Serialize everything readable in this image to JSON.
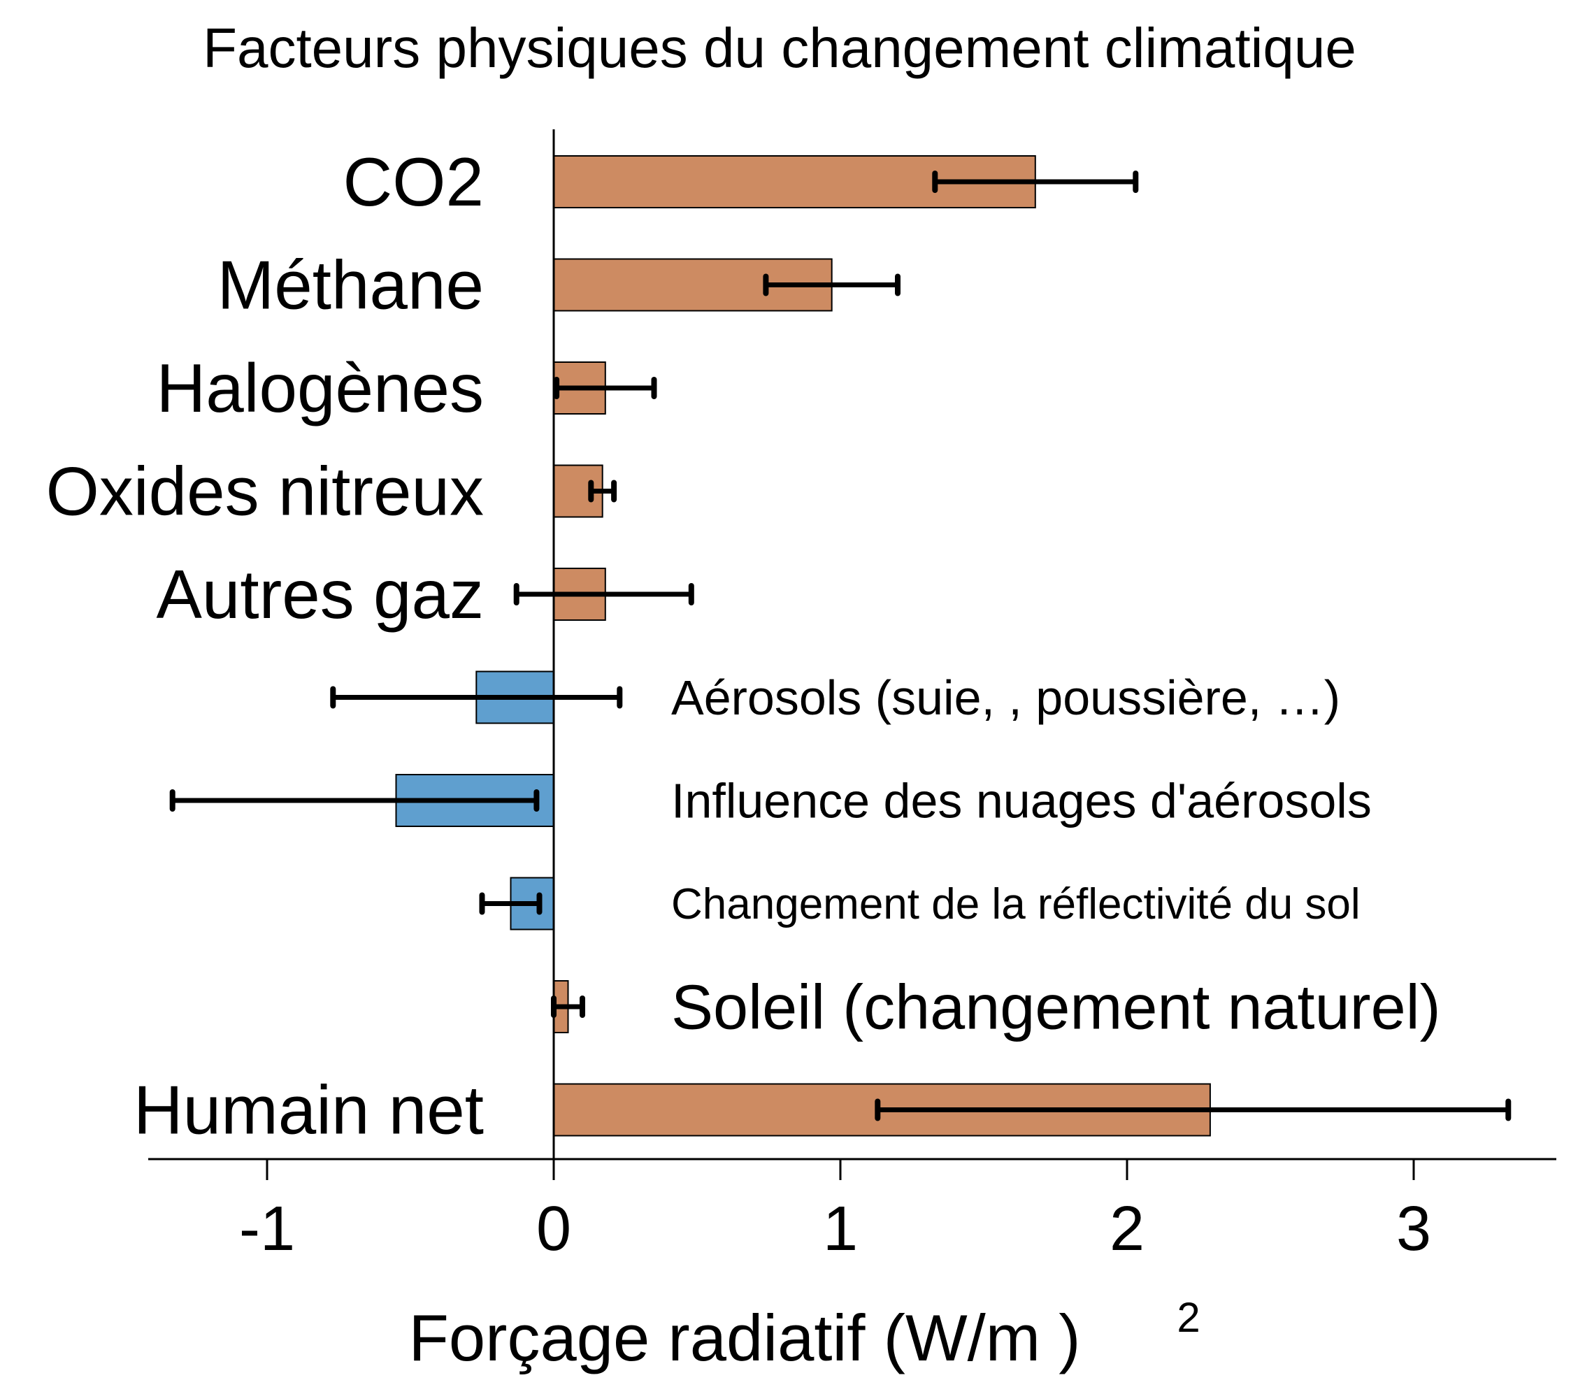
{
  "chart_data": {
    "type": "bar",
    "orientation": "horizontal",
    "title": "Facteurs physiques du changement climatique",
    "xlabel": "Forçage radiatif (W/m )",
    "xlabel_superscript": "2",
    "xlim": [
      -1.4,
      3.5
    ],
    "xticks": [
      -1,
      0,
      1,
      2,
      3
    ],
    "xtick_labels": [
      "-1",
      "0",
      "1",
      "2",
      "3"
    ],
    "grid": false,
    "colors": {
      "positive": "#cd8b62",
      "negative": "#5f9fcf",
      "error_bar": "#000000",
      "axis": "#000000"
    },
    "bars": [
      {
        "label": "CO2",
        "label_side": "left",
        "value": 1.68,
        "err_low": 1.33,
        "err_high": 2.03
      },
      {
        "label": "Méthane",
        "label_side": "left",
        "value": 0.97,
        "err_low": 0.74,
        "err_high": 1.2
      },
      {
        "label": "Halogènes",
        "label_side": "left",
        "value": 0.18,
        "err_low": 0.01,
        "err_high": 0.35
      },
      {
        "label": "Oxides nitreux",
        "label_side": "left",
        "value": 0.17,
        "err_low": 0.13,
        "err_high": 0.21
      },
      {
        "label": "Autres gaz",
        "label_side": "left",
        "value": 0.18,
        "err_low": -0.13,
        "err_high": 0.48
      },
      {
        "label": "Aérosols (suie, , poussière, …)",
        "label_side": "right",
        "label_size": "small",
        "value": -0.27,
        "err_low": -0.77,
        "err_high": 0.23
      },
      {
        "label": "Influence des nuages d'aérosols",
        "label_side": "right",
        "label_size": "small",
        "value": -0.55,
        "err_low": -1.33,
        "err_high": -0.06
      },
      {
        "label": "Changement de la réflectivité du sol",
        "label_side": "right",
        "label_size": "smaller",
        "value": -0.15,
        "err_low": -0.25,
        "err_high": -0.05
      },
      {
        "label": "Soleil (changement naturel)",
        "label_side": "right",
        "label_size": "large",
        "value": 0.05,
        "err_low": 0.0,
        "err_high": 0.1
      },
      {
        "label": "Humain net",
        "label_side": "left",
        "value": 2.29,
        "err_low": 1.13,
        "err_high": 3.33
      }
    ]
  }
}
